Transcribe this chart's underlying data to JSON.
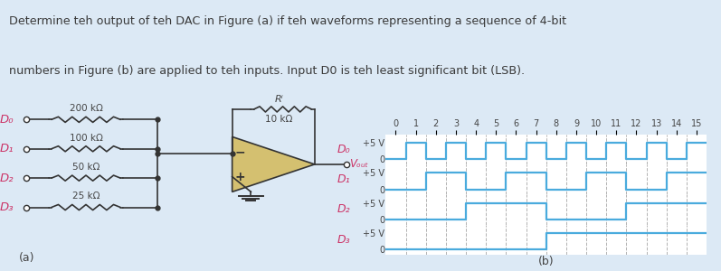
{
  "title_line1": "Determine teh output of teh DAC in Figure (a) if teh waveforms representing a sequence of 4-bit",
  "title_line2": "numbers in Figure (b) are applied to teh inputs. Input D0 is teh least significant bit (LSB).",
  "title_color": "#3a3a3a",
  "bg_color": "#dce9f5",
  "panel_bg": "#ffffff",
  "waveform_color": "#4aabdd",
  "dashed_color": "#aaaaaa",
  "label_color": "#cc3366",
  "text_color": "#444444",
  "steps": 16,
  "D0_bits": [
    0,
    1,
    0,
    1,
    0,
    1,
    0,
    1,
    0,
    1,
    0,
    1,
    0,
    1,
    0,
    1
  ],
  "D1_bits": [
    0,
    0,
    1,
    1,
    0,
    0,
    1,
    1,
    0,
    0,
    1,
    1,
    0,
    0,
    1,
    1
  ],
  "D2_bits": [
    0,
    0,
    0,
    0,
    1,
    1,
    1,
    1,
    0,
    0,
    0,
    0,
    1,
    1,
    1,
    1
  ],
  "D3_bits": [
    0,
    0,
    0,
    0,
    0,
    0,
    0,
    0,
    1,
    1,
    1,
    1,
    1,
    1,
    1,
    1
  ],
  "xlabel_numbers": [
    "0",
    "1",
    "2",
    "3",
    "4",
    "5",
    "6",
    "7",
    "8",
    "9",
    "10",
    "11",
    "12",
    "13",
    "14",
    "15"
  ],
  "circuit_label_a": "(a)",
  "waveform_label_b": "(b)",
  "resistors": [
    "200 kΩ",
    "100 kΩ",
    "50 kΩ",
    "25 kΩ"
  ],
  "d_labels": [
    "D₀",
    "D₁",
    "D₂",
    "D₃"
  ],
  "rf_label": "Rⁱ",
  "rf_value": "10 kΩ",
  "vout_label": "Vₒᵤₜ"
}
